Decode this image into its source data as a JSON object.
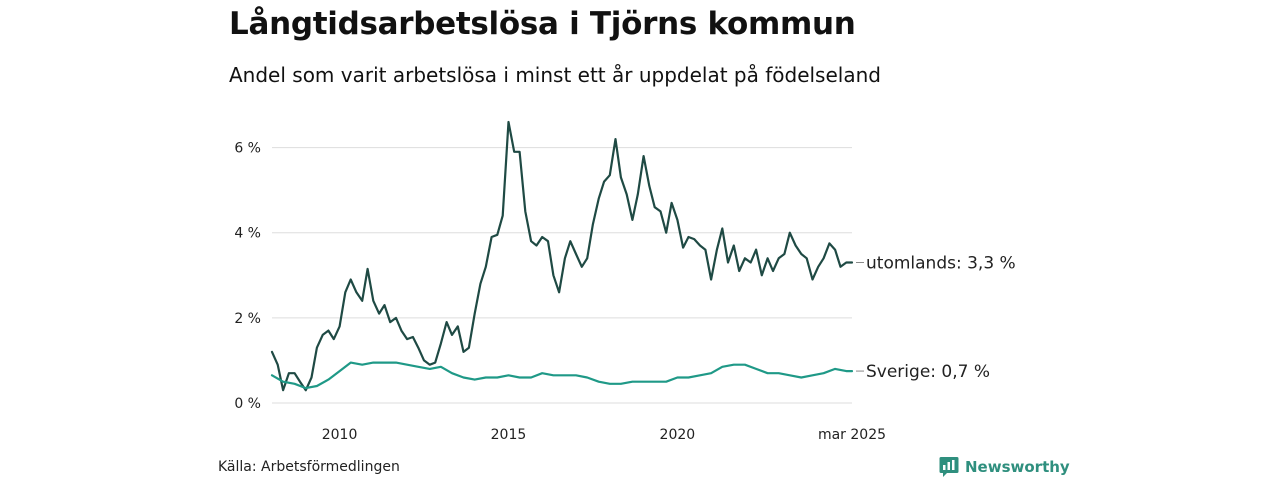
{
  "header": {
    "title": "Långtidsarbetslösa i Tjörns kommun",
    "subtitle": "Andel som varit arbetslösa i minst ett år uppdelat på födelseland"
  },
  "footer": {
    "source": "Källa: Arbetsförmedlingen",
    "brand": "Newsworthy"
  },
  "colors": {
    "utomlands": "#1f4a44",
    "sverige": "#1f9987",
    "grid": "#dddddd",
    "brand": "#2f8f7e"
  },
  "icons": {
    "brand_logo": "bar-chart-speech-bubble-icon"
  },
  "chart_data": {
    "type": "line",
    "x_unit": "year",
    "x_range": [
      2008.0,
      2025.17
    ],
    "ylim": [
      0,
      7
    ],
    "y_ticks": [
      0,
      2,
      4,
      6
    ],
    "y_tick_labels": [
      "0 %",
      "2 %",
      "4 %",
      "6 %"
    ],
    "x_ticks": [
      2010,
      2015,
      2020,
      2025.17
    ],
    "x_tick_labels": [
      "2010",
      "2015",
      "2020",
      "mar 2025"
    ],
    "grid": true,
    "legend": "end-of-line labels",
    "series": [
      {
        "name": "utomlands",
        "end_label": "utomlands: 3,3 %",
        "points": [
          [
            2008.0,
            1.2
          ],
          [
            2008.17,
            0.9
          ],
          [
            2008.33,
            0.3
          ],
          [
            2008.5,
            0.7
          ],
          [
            2008.67,
            0.7
          ],
          [
            2008.83,
            0.5
          ],
          [
            2009.0,
            0.3
          ],
          [
            2009.17,
            0.6
          ],
          [
            2009.33,
            1.3
          ],
          [
            2009.5,
            1.6
          ],
          [
            2009.67,
            1.7
          ],
          [
            2009.83,
            1.5
          ],
          [
            2010.0,
            1.8
          ],
          [
            2010.17,
            2.6
          ],
          [
            2010.33,
            2.9
          ],
          [
            2010.5,
            2.6
          ],
          [
            2010.67,
            2.4
          ],
          [
            2010.83,
            3.15
          ],
          [
            2011.0,
            2.4
          ],
          [
            2011.17,
            2.1
          ],
          [
            2011.33,
            2.3
          ],
          [
            2011.5,
            1.9
          ],
          [
            2011.67,
            2.0
          ],
          [
            2011.83,
            1.7
          ],
          [
            2012.0,
            1.5
          ],
          [
            2012.17,
            1.55
          ],
          [
            2012.33,
            1.3
          ],
          [
            2012.5,
            1.0
          ],
          [
            2012.67,
            0.9
          ],
          [
            2012.83,
            0.95
          ],
          [
            2013.0,
            1.4
          ],
          [
            2013.17,
            1.9
          ],
          [
            2013.33,
            1.6
          ],
          [
            2013.5,
            1.8
          ],
          [
            2013.67,
            1.2
          ],
          [
            2013.83,
            1.3
          ],
          [
            2014.0,
            2.1
          ],
          [
            2014.17,
            2.8
          ],
          [
            2014.33,
            3.2
          ],
          [
            2014.5,
            3.9
          ],
          [
            2014.67,
            3.95
          ],
          [
            2014.83,
            4.4
          ],
          [
            2015.0,
            6.6
          ],
          [
            2015.17,
            5.9
          ],
          [
            2015.33,
            5.9
          ],
          [
            2015.5,
            4.5
          ],
          [
            2015.67,
            3.8
          ],
          [
            2015.83,
            3.7
          ],
          [
            2016.0,
            3.9
          ],
          [
            2016.17,
            3.8
          ],
          [
            2016.33,
            3.0
          ],
          [
            2016.5,
            2.6
          ],
          [
            2016.67,
            3.4
          ],
          [
            2016.83,
            3.8
          ],
          [
            2017.0,
            3.5
          ],
          [
            2017.17,
            3.2
          ],
          [
            2017.33,
            3.4
          ],
          [
            2017.5,
            4.2
          ],
          [
            2017.67,
            4.8
          ],
          [
            2017.83,
            5.2
          ],
          [
            2018.0,
            5.35
          ],
          [
            2018.17,
            6.2
          ],
          [
            2018.33,
            5.3
          ],
          [
            2018.5,
            4.9
          ],
          [
            2018.67,
            4.3
          ],
          [
            2018.83,
            4.9
          ],
          [
            2019.0,
            5.8
          ],
          [
            2019.17,
            5.1
          ],
          [
            2019.33,
            4.6
          ],
          [
            2019.5,
            4.5
          ],
          [
            2019.67,
            4.0
          ],
          [
            2019.83,
            4.7
          ],
          [
            2020.0,
            4.3
          ],
          [
            2020.17,
            3.65
          ],
          [
            2020.33,
            3.9
          ],
          [
            2020.5,
            3.85
          ],
          [
            2020.67,
            3.7
          ],
          [
            2020.83,
            3.6
          ],
          [
            2021.0,
            2.9
          ],
          [
            2021.17,
            3.6
          ],
          [
            2021.33,
            4.1
          ],
          [
            2021.5,
            3.3
          ],
          [
            2021.67,
            3.7
          ],
          [
            2021.83,
            3.1
          ],
          [
            2022.0,
            3.4
          ],
          [
            2022.17,
            3.3
          ],
          [
            2022.33,
            3.6
          ],
          [
            2022.5,
            3.0
          ],
          [
            2022.67,
            3.4
          ],
          [
            2022.83,
            3.1
          ],
          [
            2023.0,
            3.4
          ],
          [
            2023.17,
            3.5
          ],
          [
            2023.33,
            4.0
          ],
          [
            2023.5,
            3.7
          ],
          [
            2023.67,
            3.5
          ],
          [
            2023.83,
            3.4
          ],
          [
            2024.0,
            2.9
          ],
          [
            2024.17,
            3.2
          ],
          [
            2024.33,
            3.4
          ],
          [
            2024.5,
            3.75
          ],
          [
            2024.67,
            3.6
          ],
          [
            2024.83,
            3.2
          ],
          [
            2025.0,
            3.3
          ],
          [
            2025.17,
            3.3
          ]
        ]
      },
      {
        "name": "Sverige",
        "end_label": "Sverige: 0,7 %",
        "points": [
          [
            2008.0,
            0.65
          ],
          [
            2008.33,
            0.5
          ],
          [
            2008.67,
            0.45
          ],
          [
            2009.0,
            0.35
          ],
          [
            2009.33,
            0.4
          ],
          [
            2009.67,
            0.55
          ],
          [
            2010.0,
            0.75
          ],
          [
            2010.33,
            0.95
          ],
          [
            2010.67,
            0.9
          ],
          [
            2011.0,
            0.95
          ],
          [
            2011.33,
            0.95
          ],
          [
            2011.67,
            0.95
          ],
          [
            2012.0,
            0.9
          ],
          [
            2012.33,
            0.85
          ],
          [
            2012.67,
            0.8
          ],
          [
            2013.0,
            0.85
          ],
          [
            2013.33,
            0.7
          ],
          [
            2013.67,
            0.6
          ],
          [
            2014.0,
            0.55
          ],
          [
            2014.33,
            0.6
          ],
          [
            2014.67,
            0.6
          ],
          [
            2015.0,
            0.65
          ],
          [
            2015.33,
            0.6
          ],
          [
            2015.67,
            0.6
          ],
          [
            2016.0,
            0.7
          ],
          [
            2016.33,
            0.65
          ],
          [
            2016.67,
            0.65
          ],
          [
            2017.0,
            0.65
          ],
          [
            2017.33,
            0.6
          ],
          [
            2017.67,
            0.5
          ],
          [
            2018.0,
            0.45
          ],
          [
            2018.33,
            0.45
          ],
          [
            2018.67,
            0.5
          ],
          [
            2019.0,
            0.5
          ],
          [
            2019.33,
            0.5
          ],
          [
            2019.67,
            0.5
          ],
          [
            2020.0,
            0.6
          ],
          [
            2020.33,
            0.6
          ],
          [
            2020.67,
            0.65
          ],
          [
            2021.0,
            0.7
          ],
          [
            2021.33,
            0.85
          ],
          [
            2021.67,
            0.9
          ],
          [
            2022.0,
            0.9
          ],
          [
            2022.33,
            0.8
          ],
          [
            2022.67,
            0.7
          ],
          [
            2023.0,
            0.7
          ],
          [
            2023.33,
            0.65
          ],
          [
            2023.67,
            0.6
          ],
          [
            2024.0,
            0.65
          ],
          [
            2024.33,
            0.7
          ],
          [
            2024.67,
            0.8
          ],
          [
            2025.0,
            0.75
          ],
          [
            2025.17,
            0.75
          ]
        ]
      }
    ]
  }
}
